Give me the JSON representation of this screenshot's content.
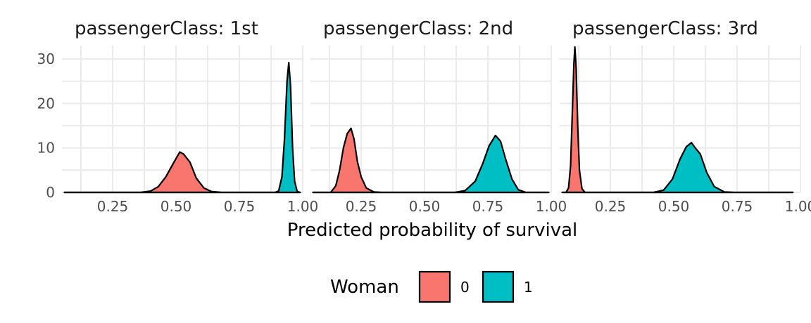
{
  "chart_data": {
    "type": "area",
    "subtype": "density",
    "facet_label_prefix": "passengerClass",
    "xlabel": "Predicted probability of survival",
    "ylabel": "",
    "xlim": [
      0.05,
      1.0
    ],
    "ylim": [
      0,
      33
    ],
    "x_ticks": [
      "0.25",
      "0.50",
      "0.75",
      "1.00"
    ],
    "y_ticks": [
      "0",
      "10",
      "20",
      "30"
    ],
    "legend": {
      "title": "Woman",
      "position": "bottom",
      "entries": [
        {
          "label": "0",
          "color": "#F8766D"
        },
        {
          "label": "1",
          "color": "#00BFC4"
        }
      ]
    },
    "grid": true,
    "facets": [
      {
        "strip": "passengerClass: 1st",
        "series": [
          {
            "group": "0",
            "color": "#F8766D",
            "range": [
              0.06,
              0.99
            ],
            "peak_x": 0.515,
            "peak_y": 9.1,
            "points": [
              [
                0.06,
                0
              ],
              [
                0.36,
                0
              ],
              [
                0.4,
                0.3
              ],
              [
                0.43,
                1.3
              ],
              [
                0.46,
                3.5
              ],
              [
                0.49,
                6.6
              ],
              [
                0.515,
                9.1
              ],
              [
                0.53,
                8.6
              ],
              [
                0.555,
                6.8
              ],
              [
                0.58,
                3.2
              ],
              [
                0.61,
                1.0
              ],
              [
                0.64,
                0.2
              ],
              [
                0.68,
                0
              ],
              [
                0.99,
                0
              ]
            ]
          },
          {
            "group": "1",
            "color": "#00BFC4",
            "range": [
              0.06,
              0.99
            ],
            "peak_x": 0.945,
            "peak_y": 29.2,
            "points": [
              [
                0.06,
                0
              ],
              [
                0.89,
                0
              ],
              [
                0.905,
                0.3
              ],
              [
                0.918,
                3.5
              ],
              [
                0.928,
                12
              ],
              [
                0.938,
                25
              ],
              [
                0.945,
                29.2
              ],
              [
                0.952,
                24
              ],
              [
                0.96,
                10
              ],
              [
                0.968,
                2.5
              ],
              [
                0.978,
                0.2
              ],
              [
                0.99,
                0
              ]
            ]
          }
        ]
      },
      {
        "strip": "passengerClass: 2nd",
        "series": [
          {
            "group": "0",
            "color": "#F8766D",
            "range": [
              0.06,
              0.99
            ],
            "peak_x": 0.21,
            "peak_y": 14.4,
            "points": [
              [
                0.06,
                0
              ],
              [
                0.13,
                0
              ],
              [
                0.15,
                1.5
              ],
              [
                0.165,
                5
              ],
              [
                0.18,
                10
              ],
              [
                0.195,
                13.2
              ],
              [
                0.21,
                14.4
              ],
              [
                0.222,
                12
              ],
              [
                0.235,
                7
              ],
              [
                0.25,
                3.5
              ],
              [
                0.27,
                1.0
              ],
              [
                0.3,
                0.1
              ],
              [
                0.33,
                0
              ],
              [
                0.99,
                0
              ]
            ]
          },
          {
            "group": "1",
            "color": "#00BFC4",
            "range": [
              0.06,
              0.99
            ],
            "peak_x": 0.78,
            "peak_y": 12.8,
            "points": [
              [
                0.06,
                0
              ],
              [
                0.62,
                0
              ],
              [
                0.66,
                0.4
              ],
              [
                0.7,
                2.5
              ],
              [
                0.73,
                6.5
              ],
              [
                0.755,
                10.5
              ],
              [
                0.78,
                12.8
              ],
              [
                0.8,
                11.5
              ],
              [
                0.82,
                7.5
              ],
              [
                0.845,
                3
              ],
              [
                0.87,
                0.6
              ],
              [
                0.9,
                0
              ],
              [
                0.99,
                0
              ]
            ]
          }
        ]
      },
      {
        "strip": "passengerClass: 3rd",
        "series": [
          {
            "group": "0",
            "color": "#F8766D",
            "range": [
              0.06,
              0.97
            ],
            "peak_x": 0.11,
            "peak_y": 32.7,
            "points": [
              [
                0.06,
                0
              ],
              [
                0.075,
                0
              ],
              [
                0.085,
                1.0
              ],
              [
                0.093,
                6
              ],
              [
                0.1,
                18
              ],
              [
                0.106,
                29
              ],
              [
                0.11,
                32.7
              ],
              [
                0.115,
                28
              ],
              [
                0.121,
                15
              ],
              [
                0.128,
                5
              ],
              [
                0.138,
                0.8
              ],
              [
                0.15,
                0
              ],
              [
                0.97,
                0
              ]
            ]
          },
          {
            "group": "1",
            "color": "#00BFC4",
            "range": [
              0.06,
              0.97
            ],
            "peak_x": 0.57,
            "peak_y": 11.2,
            "points": [
              [
                0.06,
                0
              ],
              [
                0.42,
                0
              ],
              [
                0.46,
                0.5
              ],
              [
                0.495,
                3
              ],
              [
                0.525,
                7.5
              ],
              [
                0.55,
                10.3
              ],
              [
                0.57,
                11.2
              ],
              [
                0.585,
                10
              ],
              [
                0.605,
                8.6
              ],
              [
                0.63,
                4.5
              ],
              [
                0.66,
                1.3
              ],
              [
                0.7,
                0.1
              ],
              [
                0.74,
                0
              ],
              [
                0.97,
                0
              ]
            ]
          }
        ]
      }
    ]
  }
}
